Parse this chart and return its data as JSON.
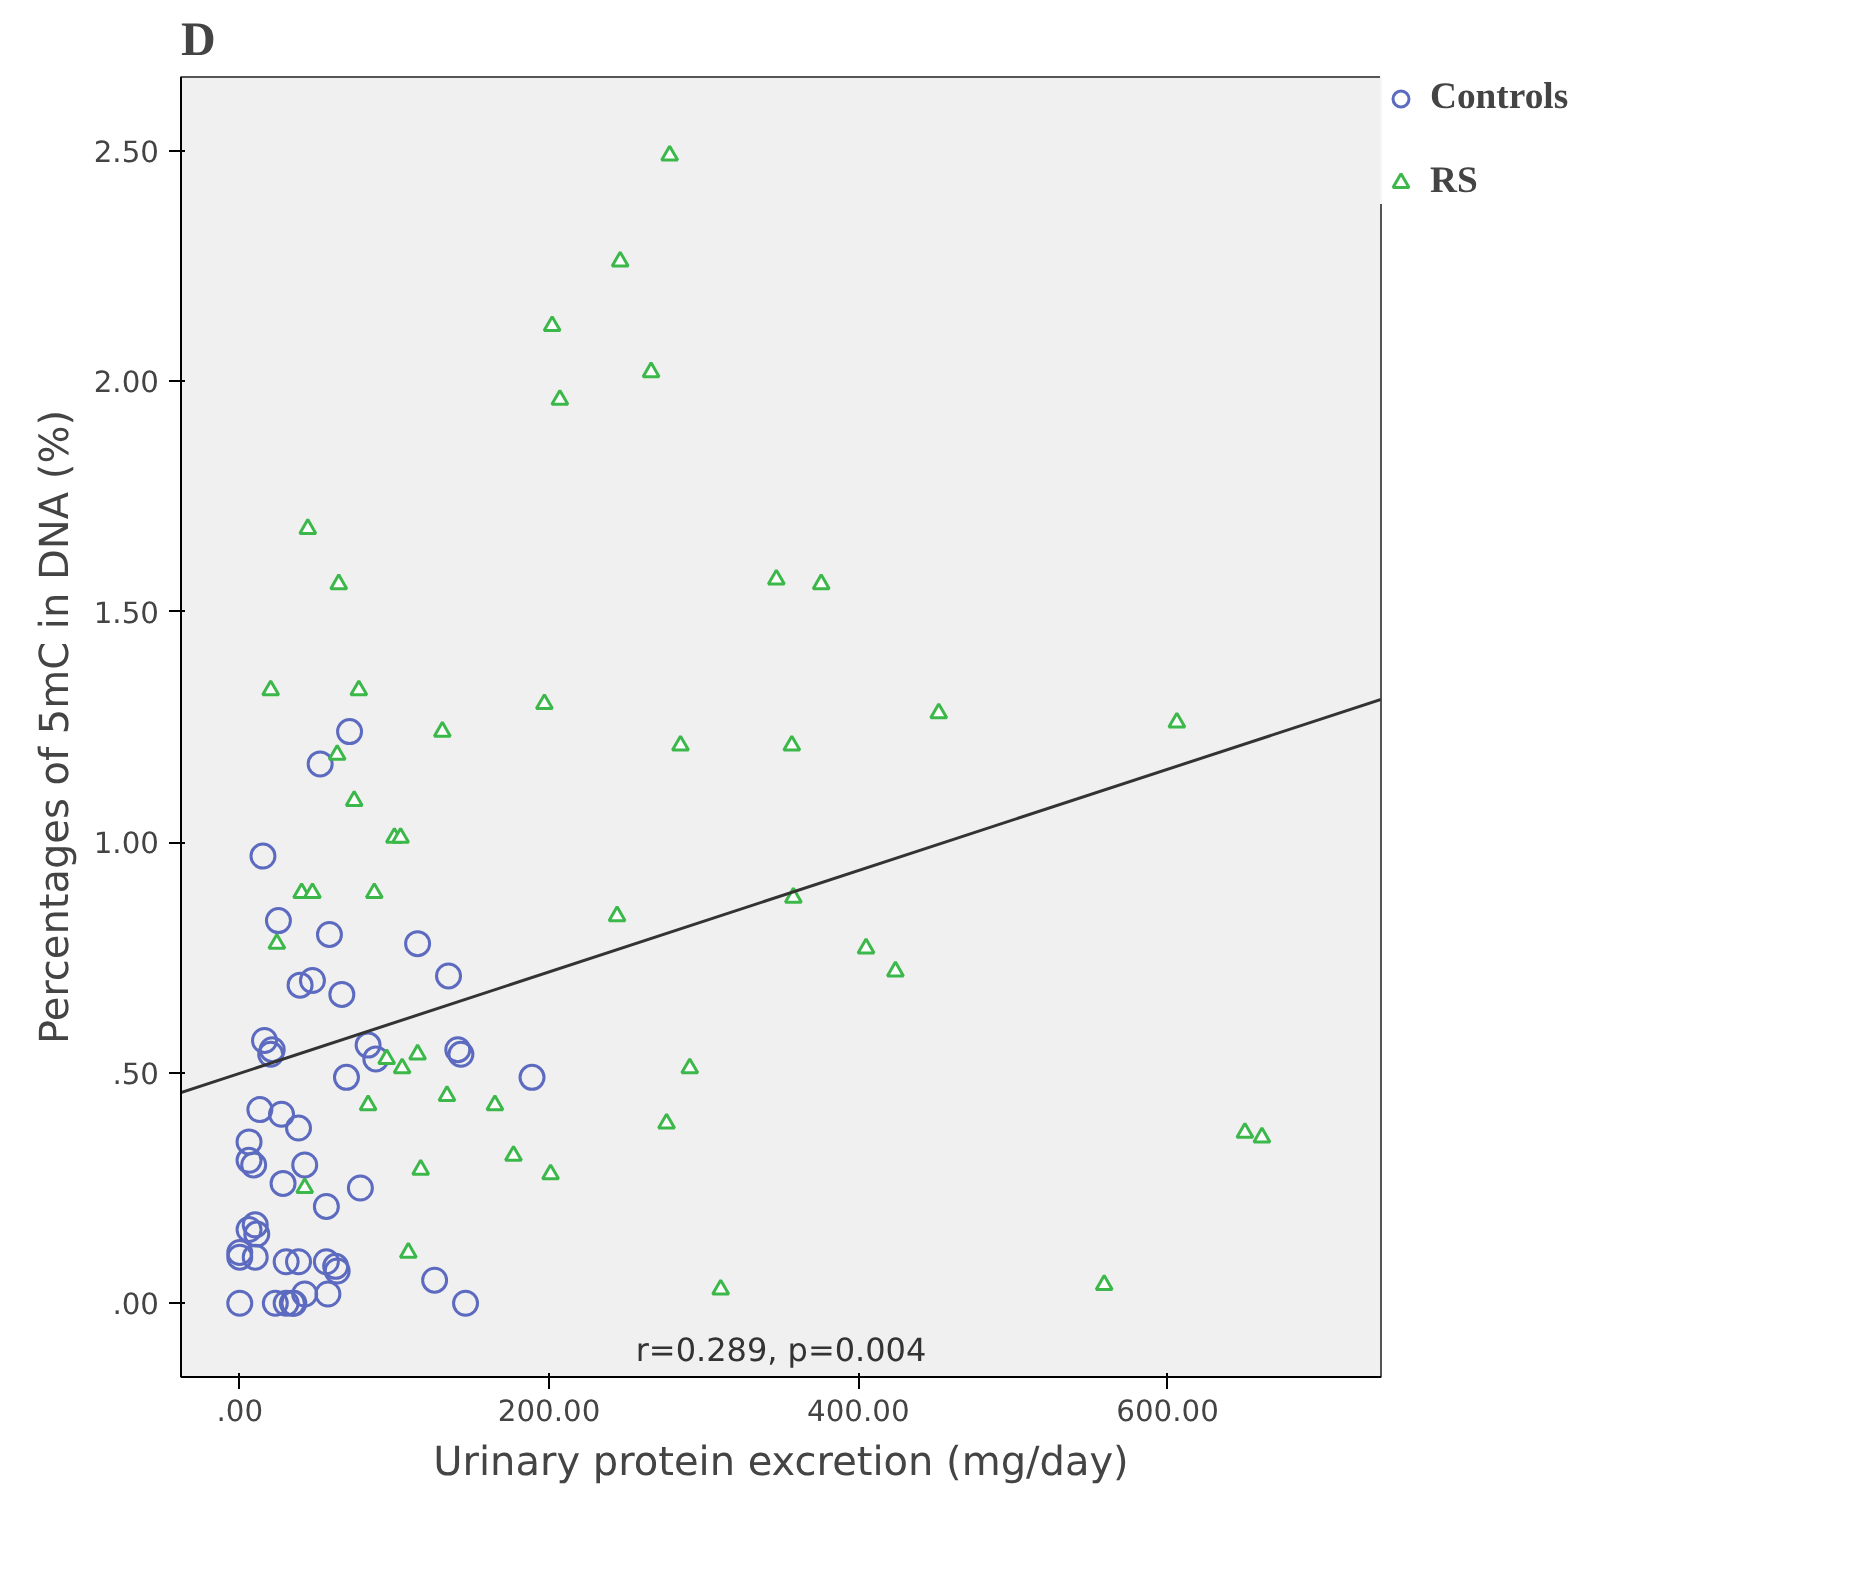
{
  "chart_data": {
    "type": "scatter",
    "title": "D",
    "xlabel": "Urinary protein excretion (mg/day)",
    "ylabel": "Percentages of 5mC in DNA (%)",
    "annotations": [
      "r=0.289, p=0.004"
    ],
    "xlim": [
      -38,
      738
    ],
    "ylim": [
      -0.16,
      2.66
    ],
    "xticks": [
      {
        "value": 0,
        "label": ".00"
      },
      {
        "value": 200,
        "label": "200.00"
      },
      {
        "value": 400,
        "label": "400.00"
      },
      {
        "value": 600,
        "label": "600.00"
      }
    ],
    "yticks": [
      {
        "value": 0,
        "label": ".00"
      },
      {
        "value": 0.5,
        "label": ".50"
      },
      {
        "value": 1.0,
        "label": "1.00"
      },
      {
        "value": 1.5,
        "label": "1.50"
      },
      {
        "value": 2.0,
        "label": "2.00"
      },
      {
        "value": 2.5,
        "label": "2.50"
      }
    ],
    "grid": false,
    "legend": "top right",
    "series": [
      {
        "name": "Controls",
        "color": "#5c6bc0",
        "marker": "circle",
        "x": [
          71,
          52,
          15,
          25,
          58,
          115,
          47,
          39,
          66,
          135,
          16,
          21,
          20,
          83,
          88,
          141,
          143,
          69,
          189,
          13,
          27,
          38,
          6,
          6,
          9,
          42,
          28,
          78,
          56,
          10,
          11,
          6,
          0,
          0,
          10,
          30,
          38,
          56,
          62,
          63,
          126,
          0,
          23,
          30,
          34,
          35,
          42,
          57,
          146
        ],
        "values": [
          1.24,
          1.17,
          0.97,
          0.83,
          0.8,
          0.78,
          0.7,
          0.69,
          0.67,
          0.71,
          0.57,
          0.55,
          0.54,
          0.56,
          0.53,
          0.55,
          0.54,
          0.49,
          0.49,
          0.42,
          0.41,
          0.38,
          0.35,
          0.31,
          0.3,
          0.3,
          0.26,
          0.25,
          0.21,
          0.17,
          0.15,
          0.16,
          0.11,
          0.1,
          0.1,
          0.09,
          0.09,
          0.09,
          0.08,
          0.07,
          0.05,
          0.0,
          0.0,
          0.0,
          0.0,
          0.0,
          0.02,
          0.02,
          0.0
        ]
      },
      {
        "name": "RS",
        "color": "#3cb84a",
        "marker": "triangle",
        "x": [
          278,
          246,
          202,
          266,
          207,
          44,
          64,
          347,
          376,
          20,
          77,
          131,
          63,
          74,
          100,
          104,
          40,
          47,
          87,
          24,
          95,
          115,
          105,
          83,
          134,
          165,
          177,
          117,
          42,
          109,
          197,
          285,
          357,
          452,
          606,
          244,
          358,
          405,
          424,
          291,
          276,
          201,
          650,
          661,
          311,
          559
        ],
        "values": [
          2.49,
          2.26,
          2.12,
          2.02,
          1.96,
          1.68,
          1.56,
          1.57,
          1.56,
          1.33,
          1.33,
          1.24,
          1.19,
          1.09,
          1.01,
          1.01,
          0.89,
          0.89,
          0.89,
          0.78,
          0.53,
          0.54,
          0.51,
          0.43,
          0.45,
          0.43,
          0.32,
          0.29,
          0.25,
          0.11,
          1.3,
          1.21,
          1.21,
          1.28,
          1.26,
          0.84,
          0.88,
          0.77,
          0.72,
          0.51,
          0.39,
          0.28,
          0.37,
          0.36,
          0.03,
          0.04
        ]
      },
      {
        "type": "line",
        "color": "#333333",
        "x": [
          -38,
          738
        ],
        "values": [
          0.457,
          1.31
        ]
      }
    ]
  }
}
